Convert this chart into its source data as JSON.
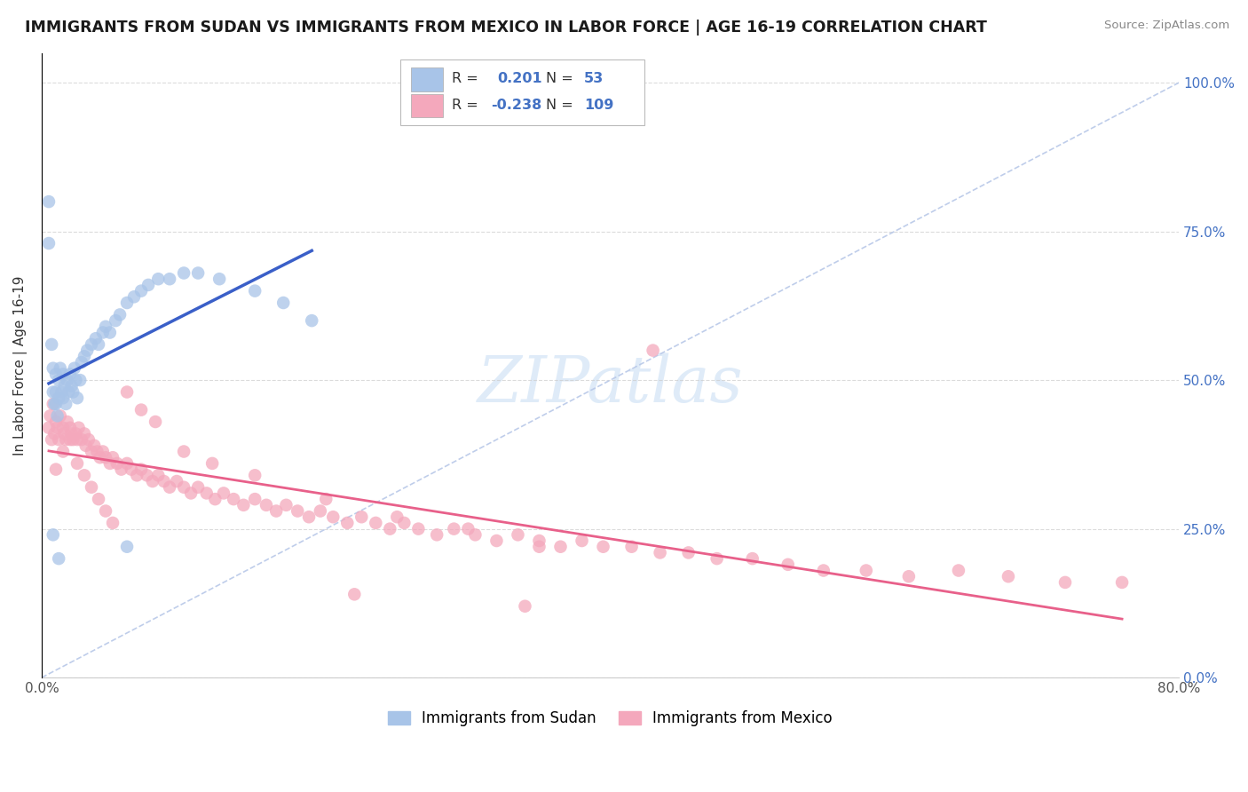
{
  "title": "IMMIGRANTS FROM SUDAN VS IMMIGRANTS FROM MEXICO IN LABOR FORCE | AGE 16-19 CORRELATION CHART",
  "source": "Source: ZipAtlas.com",
  "ylabel": "In Labor Force | Age 16-19",
  "xlim": [
    0.0,
    0.8
  ],
  "ylim": [
    0.0,
    1.05
  ],
  "xticks": [
    0.0,
    0.1,
    0.2,
    0.3,
    0.4,
    0.5,
    0.6,
    0.7,
    0.8
  ],
  "xticklabels": [
    "0.0%",
    "",
    "",
    "",
    "",
    "",
    "",
    "",
    "80.0%"
  ],
  "yticks": [
    0.0,
    0.25,
    0.5,
    0.75,
    1.0
  ],
  "yticklabels_right": [
    "0.0%",
    "25.0%",
    "50.0%",
    "75.0%",
    "100.0%"
  ],
  "sudan_color": "#a8c4e8",
  "mexico_color": "#f4a8bc",
  "sudan_line_color": "#3a5fc8",
  "mexico_line_color": "#e8608a",
  "ref_line_color": "#b8c8e8",
  "sudan_N": 53,
  "mexico_N": 109,
  "watermark": "ZIPatlas",
  "legend_R_color": "#4472c4",
  "background_color": "#ffffff",
  "sudan_x": [
    0.005,
    0.005,
    0.007,
    0.008,
    0.008,
    0.009,
    0.01,
    0.01,
    0.01,
    0.011,
    0.012,
    0.012,
    0.013,
    0.014,
    0.015,
    0.015,
    0.016,
    0.017,
    0.018,
    0.019,
    0.02,
    0.021,
    0.022,
    0.023,
    0.024,
    0.025,
    0.027,
    0.028,
    0.03,
    0.032,
    0.035,
    0.038,
    0.04,
    0.043,
    0.045,
    0.048,
    0.052,
    0.055,
    0.06,
    0.065,
    0.07,
    0.075,
    0.082,
    0.09,
    0.1,
    0.11,
    0.125,
    0.15,
    0.17,
    0.19,
    0.008,
    0.012,
    0.06
  ],
  "sudan_y": [
    0.8,
    0.73,
    0.56,
    0.52,
    0.48,
    0.46,
    0.51,
    0.48,
    0.46,
    0.44,
    0.5,
    0.47,
    0.52,
    0.48,
    0.51,
    0.47,
    0.49,
    0.46,
    0.5,
    0.48,
    0.51,
    0.49,
    0.48,
    0.52,
    0.5,
    0.47,
    0.5,
    0.53,
    0.54,
    0.55,
    0.56,
    0.57,
    0.56,
    0.58,
    0.59,
    0.58,
    0.6,
    0.61,
    0.63,
    0.64,
    0.65,
    0.66,
    0.67,
    0.67,
    0.68,
    0.68,
    0.67,
    0.65,
    0.63,
    0.6,
    0.24,
    0.2,
    0.22
  ],
  "mexico_x": [
    0.005,
    0.006,
    0.007,
    0.008,
    0.009,
    0.01,
    0.011,
    0.012,
    0.013,
    0.015,
    0.016,
    0.017,
    0.018,
    0.02,
    0.021,
    0.022,
    0.024,
    0.025,
    0.026,
    0.028,
    0.03,
    0.031,
    0.033,
    0.035,
    0.037,
    0.039,
    0.041,
    0.043,
    0.045,
    0.048,
    0.05,
    0.053,
    0.056,
    0.06,
    0.063,
    0.067,
    0.07,
    0.074,
    0.078,
    0.082,
    0.086,
    0.09,
    0.095,
    0.1,
    0.105,
    0.11,
    0.116,
    0.122,
    0.128,
    0.135,
    0.142,
    0.15,
    0.158,
    0.165,
    0.172,
    0.18,
    0.188,
    0.196,
    0.205,
    0.215,
    0.225,
    0.235,
    0.245,
    0.255,
    0.265,
    0.278,
    0.29,
    0.305,
    0.32,
    0.335,
    0.35,
    0.365,
    0.38,
    0.395,
    0.415,
    0.435,
    0.455,
    0.475,
    0.5,
    0.525,
    0.55,
    0.58,
    0.61,
    0.645,
    0.68,
    0.72,
    0.76,
    0.01,
    0.015,
    0.02,
    0.025,
    0.03,
    0.035,
    0.04,
    0.045,
    0.05,
    0.06,
    0.07,
    0.08,
    0.1,
    0.12,
    0.15,
    0.2,
    0.25,
    0.3,
    0.35,
    0.22,
    0.34,
    0.43
  ],
  "mexico_y": [
    0.42,
    0.44,
    0.4,
    0.46,
    0.41,
    0.43,
    0.42,
    0.4,
    0.44,
    0.42,
    0.41,
    0.4,
    0.43,
    0.42,
    0.41,
    0.4,
    0.41,
    0.4,
    0.42,
    0.4,
    0.41,
    0.39,
    0.4,
    0.38,
    0.39,
    0.38,
    0.37,
    0.38,
    0.37,
    0.36,
    0.37,
    0.36,
    0.35,
    0.36,
    0.35,
    0.34,
    0.35,
    0.34,
    0.33,
    0.34,
    0.33,
    0.32,
    0.33,
    0.32,
    0.31,
    0.32,
    0.31,
    0.3,
    0.31,
    0.3,
    0.29,
    0.3,
    0.29,
    0.28,
    0.29,
    0.28,
    0.27,
    0.28,
    0.27,
    0.26,
    0.27,
    0.26,
    0.25,
    0.26,
    0.25,
    0.24,
    0.25,
    0.24,
    0.23,
    0.24,
    0.23,
    0.22,
    0.23,
    0.22,
    0.22,
    0.21,
    0.21,
    0.2,
    0.2,
    0.19,
    0.18,
    0.18,
    0.17,
    0.18,
    0.17,
    0.16,
    0.16,
    0.35,
    0.38,
    0.4,
    0.36,
    0.34,
    0.32,
    0.3,
    0.28,
    0.26,
    0.48,
    0.45,
    0.43,
    0.38,
    0.36,
    0.34,
    0.3,
    0.27,
    0.25,
    0.22,
    0.14,
    0.12,
    0.55
  ]
}
